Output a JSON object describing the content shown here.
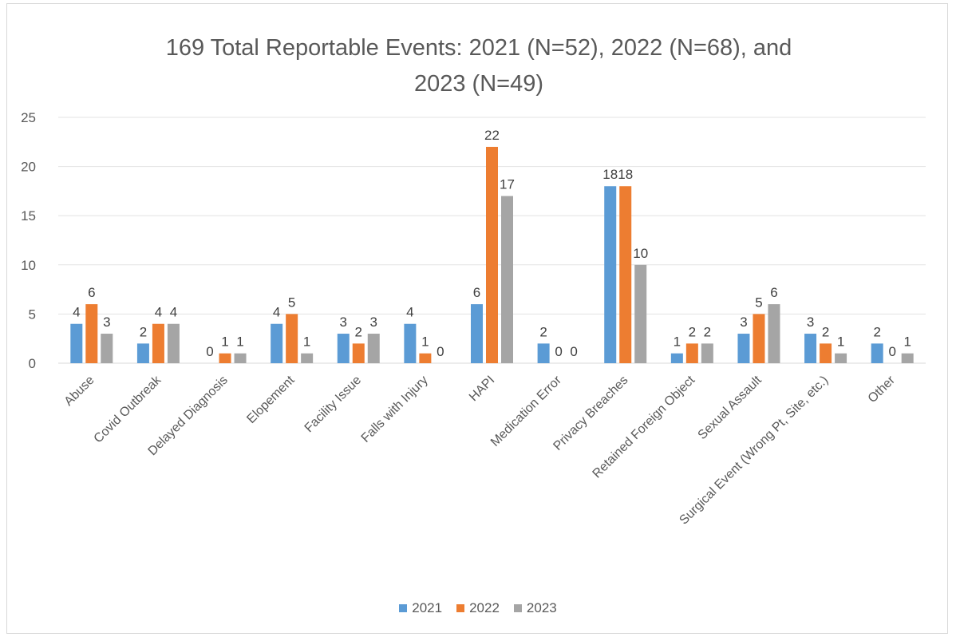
{
  "chart_data": {
    "type": "bar",
    "title_line1": "169 Total Reportable Events: 2021 (N=52), 2022 (N=68), and",
    "title_line2": "2023 (N=49)",
    "categories": [
      "Abuse",
      "Covid Outbreak",
      "Delayed Diagnosis",
      "Elopement",
      "Facility Issue",
      "Falls with Injury",
      "HAPI",
      "Medication Error",
      "Privacy Breaches",
      "Retained Foreign Object",
      "Sexual Assault",
      "Surgical Event (Wrong Pt, Site, etc.)",
      "Other"
    ],
    "series": [
      {
        "name": "2021",
        "color": "#5b9bd5",
        "values": [
          4,
          2,
          0,
          4,
          3,
          4,
          6,
          2,
          18,
          1,
          3,
          3,
          2
        ]
      },
      {
        "name": "2022",
        "color": "#ed7d31",
        "values": [
          6,
          4,
          1,
          5,
          2,
          1,
          22,
          0,
          18,
          2,
          5,
          2,
          0
        ]
      },
      {
        "name": "2023",
        "color": "#a5a5a5",
        "values": [
          3,
          4,
          1,
          1,
          3,
          0,
          17,
          0,
          10,
          2,
          6,
          1,
          1
        ]
      }
    ],
    "ylim": [
      0,
      25
    ],
    "yticks": [
      0,
      5,
      10,
      15,
      20,
      25
    ],
    "grid": true,
    "legend_position": "bottom"
  }
}
